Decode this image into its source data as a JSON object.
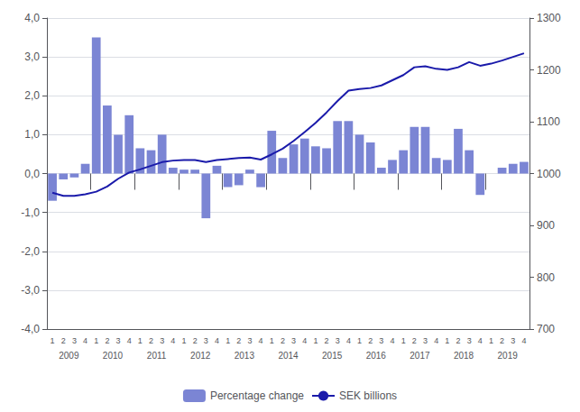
{
  "chart_data": {
    "type": "bar",
    "categories": [
      "1",
      "2",
      "3",
      "4",
      "1",
      "2",
      "3",
      "4",
      "1",
      "2",
      "3",
      "4",
      "1",
      "2",
      "3",
      "4",
      "1",
      "2",
      "3",
      "4",
      "1",
      "2",
      "3",
      "4",
      "1",
      "2",
      "3",
      "4",
      "1",
      "2",
      "3",
      "4",
      "1",
      "2",
      "3",
      "4",
      "1",
      "2",
      "3",
      "4",
      "1",
      "2",
      "3",
      "4"
    ],
    "annotations": [
      "2009",
      "2010",
      "2011",
      "2012",
      "2013",
      "2014",
      "2015",
      "2016",
      "2017",
      "2018",
      "2019"
    ],
    "series": [
      {
        "name": "Percentage change",
        "type": "bar",
        "color": "#7b85d4",
        "values": [
          -0.7,
          -0.15,
          -0.1,
          0.25,
          3.5,
          1.75,
          1.0,
          1.5,
          0.65,
          0.6,
          1.0,
          0.15,
          0.1,
          0.1,
          -1.15,
          0.2,
          -0.35,
          -0.3,
          0.1,
          -0.35,
          1.1,
          0.4,
          0.75,
          0.9,
          0.7,
          0.65,
          1.35,
          1.35,
          1.0,
          0.8,
          0.15,
          0.35,
          0.6,
          1.2,
          1.2,
          0.4,
          0.35,
          1.15,
          0.6,
          -0.55,
          0.0,
          0.15,
          0.25,
          0.3
        ]
      },
      {
        "name": "SEK billions",
        "type": "line",
        "axis": "y2",
        "color": "#1a1aaa",
        "values": [
          963,
          957,
          957,
          960,
          965,
          975,
          990,
          1002,
          1008,
          1015,
          1022,
          1025,
          1026,
          1026,
          1022,
          1026,
          1028,
          1030,
          1031,
          1027,
          1037,
          1048,
          1063,
          1080,
          1098,
          1118,
          1140,
          1160,
          1163,
          1165,
          1170,
          1180,
          1190,
          1205,
          1207,
          1202,
          1200,
          1205,
          1215,
          1208,
          1212,
          1218,
          1225,
          1232
        ]
      }
    ],
    "ylim": [
      -4.0,
      4.0
    ],
    "yticks": [
      {
        "value": -4.0,
        "label": "-4,0"
      },
      {
        "value": -3.0,
        "label": "-3,0"
      },
      {
        "value": -2.0,
        "label": "-2,0"
      },
      {
        "value": -1.0,
        "label": "-1,0"
      },
      {
        "value": 0.0,
        "label": "0,0"
      },
      {
        "value": 1.0,
        "label": "1,0"
      },
      {
        "value": 2.0,
        "label": "2,0"
      },
      {
        "value": 3.0,
        "label": "3,0"
      },
      {
        "value": 4.0,
        "label": "4,0"
      }
    ],
    "y2lim": [
      700,
      1300
    ],
    "y2ticks": [
      700,
      800,
      900,
      1000,
      1100,
      1200,
      1300
    ],
    "grid": true,
    "legend": "bottom"
  }
}
